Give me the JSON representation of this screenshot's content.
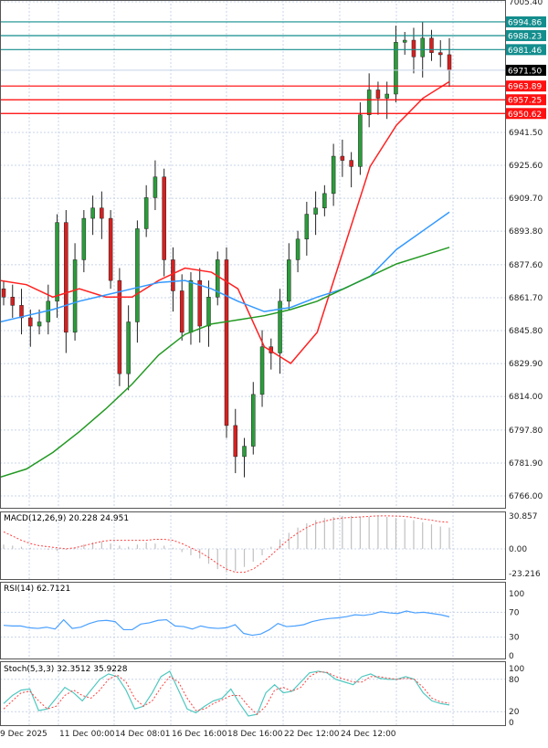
{
  "chart_data": [
    {
      "type": "candlestick",
      "panel": "price",
      "yaxis_ticks": [
        "7005.40",
        "6941.50",
        "6925.60",
        "6909.70",
        "6893.80",
        "6877.60",
        "6861.70",
        "6845.80",
        "6829.90",
        "6814.00",
        "6797.80",
        "6781.90",
        "6766.00"
      ],
      "ylim": [
        6766.0,
        7005.4
      ],
      "closes": [
        6862,
        6858,
        6852,
        6848,
        6850,
        6860,
        6898,
        6845,
        6880,
        6900,
        6905,
        6900,
        6870,
        6825,
        6850,
        6895,
        6910,
        6920,
        6880,
        6865,
        6845,
        6870,
        6848,
        6862,
        6880,
        6800,
        6785,
        6790,
        6815,
        6838,
        6835,
        6860,
        6880,
        6890,
        6902,
        6905,
        6912,
        6930,
        6928,
        6925,
        6950,
        6962,
        6958,
        6960,
        6985,
        6986,
        6978,
        6987,
        6980,
        6979,
        6971.5
      ],
      "first_open": 6866,
      "moving_averages": [
        {
          "color": "#ff2020",
          "values": [
            6870,
            6868,
            6862,
            6866,
            6862,
            6862,
            6870,
            6876,
            6874,
            6866,
            6838,
            6830,
            6845,
            6885,
            6925,
            6945,
            6958,
            6966
          ]
        },
        {
          "color": "#3399ff",
          "values": [
            6850,
            6853,
            6856,
            6860,
            6863,
            6866,
            6869,
            6870,
            6866,
            6860,
            6855,
            6857,
            6862,
            6866,
            6872,
            6885,
            6894,
            6903
          ]
        },
        {
          "color": "#229922",
          "values": [
            6775,
            6779,
            6787,
            6797,
            6808,
            6820,
            6834,
            6844,
            6849,
            6851,
            6853,
            6856,
            6860,
            6866,
            6872,
            6878,
            6882,
            6886
          ]
        }
      ],
      "levels": [
        {
          "value": "6994.86",
          "color": "#138d8d"
        },
        {
          "value": "6988.23",
          "color": "#138d8d"
        },
        {
          "value": "6981.46",
          "color": "#138d8d"
        },
        {
          "value": "6963.89",
          "color": "#ff0000"
        },
        {
          "value": "6957.25",
          "color": "#ff0000"
        },
        {
          "value": "6950.62",
          "color": "#ff0000"
        }
      ],
      "current_price": "6971.50"
    },
    {
      "type": "bar",
      "panel": "macd",
      "label": "MACD(12,26,9) 20.228 24.951",
      "yaxis_ticks": [
        "30.857",
        "0.00",
        "-23.216"
      ],
      "ylim": [
        -23.216,
        30.857
      ],
      "histogram": [
        4,
        3,
        2,
        1,
        0,
        -1,
        -2,
        -1,
        1,
        4,
        6,
        7,
        5,
        3,
        2,
        4,
        6,
        5,
        3,
        1,
        -3,
        -6,
        -9,
        -14,
        -19,
        -22,
        -21,
        -17,
        -12,
        -6,
        2,
        9,
        15,
        20,
        24,
        27,
        29,
        30,
        31,
        31,
        30,
        30,
        31,
        30,
        29,
        28,
        27,
        25,
        23,
        21,
        20
      ],
      "signal": [
        16,
        12,
        8,
        5,
        3,
        2,
        1,
        0,
        1,
        3,
        5,
        7,
        8,
        8,
        8,
        8,
        8,
        9,
        9,
        8,
        5,
        1,
        -3,
        -8,
        -14,
        -19,
        -22,
        -22,
        -19,
        -13,
        -6,
        2,
        9,
        15,
        20,
        24,
        26,
        28,
        29,
        29.5,
        30,
        30.5,
        31,
        31,
        30.8,
        30.5,
        29.5,
        28,
        27,
        25.5,
        25
      ]
    },
    {
      "type": "line",
      "panel": "rsi",
      "label": "RSI(14) 62.7121",
      "yaxis_ticks": [
        "100",
        "70",
        "30",
        "0"
      ],
      "ylim": [
        0,
        100
      ],
      "values": [
        49,
        48,
        48,
        45,
        44,
        46,
        43,
        58,
        44,
        46,
        52,
        56,
        57,
        55,
        42,
        42,
        51,
        53,
        57,
        58,
        48,
        47,
        43,
        48,
        45,
        44,
        45,
        50,
        36,
        33,
        35,
        42,
        52,
        47,
        48,
        50,
        55,
        58,
        60,
        61,
        63,
        66,
        65,
        67,
        71,
        69,
        68,
        72,
        69,
        70,
        68,
        66,
        62.7
      ]
    },
    {
      "type": "line",
      "panel": "stoch",
      "label": "Stoch(5,3,3) 32.3512 35.9228",
      "yaxis_ticks": [
        "100",
        "80",
        "20",
        "0"
      ],
      "ylim": [
        0,
        100
      ],
      "k": [
        35,
        50,
        60,
        62,
        22,
        25,
        45,
        65,
        55,
        40,
        60,
        80,
        90,
        85,
        60,
        25,
        30,
        55,
        85,
        95,
        60,
        25,
        18,
        30,
        40,
        45,
        62,
        35,
        12,
        15,
        55,
        70,
        55,
        58,
        75,
        92,
        95,
        92,
        80,
        75,
        70,
        85,
        90,
        82,
        80,
        80,
        85,
        80,
        55,
        40,
        35,
        32.4
      ],
      "d": [
        25,
        40,
        55,
        58,
        40,
        25,
        30,
        50,
        60,
        50,
        45,
        60,
        80,
        88,
        75,
        45,
        30,
        40,
        65,
        85,
        75,
        45,
        22,
        25,
        35,
        42,
        50,
        50,
        30,
        15,
        30,
        60,
        65,
        58,
        65,
        85,
        94,
        93,
        85,
        80,
        75,
        75,
        85,
        85,
        82,
        80,
        82,
        80,
        65,
        45,
        38,
        35.9
      ]
    },
    {
      "type": "axis",
      "panel": "time",
      "xaxis_ticks": [
        "9 Dec 2025",
        "11 Dec 00:00",
        "14 Dec 08:01",
        "16 Dec 16:00",
        "18 Dec 16:00",
        "22 Dec 12:00",
        "24 Dec 12:00"
      ]
    }
  ]
}
